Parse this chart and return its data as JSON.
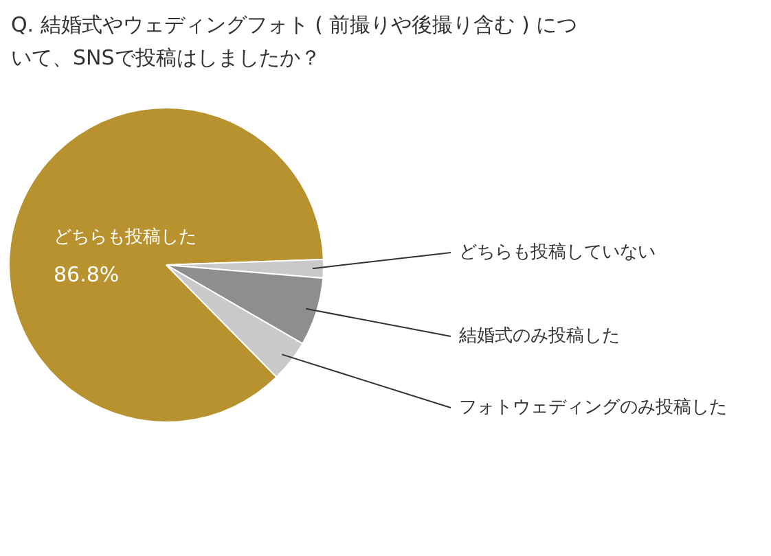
{
  "chart_data": {
    "type": "pie",
    "title": "Q. 結婚式やウェディングフォト ( 前撮りや後撮り含む ) について、SNSで投稿はしましたか？",
    "categories": [
      "どちらも投稿した",
      "どちらも投稿していない",
      "結婚式のみ投稿した",
      "フォトウェディングのみ投稿した"
    ],
    "values": [
      86.8,
      1.9,
      7.0,
      4.3
    ],
    "colors": [
      "#b8922f",
      "#c9c9c9",
      "#8e8e8e",
      "#c9c9c9"
    ],
    "value_labels": [
      "86.8%",
      null,
      null,
      null
    ],
    "legend": false
  }
}
